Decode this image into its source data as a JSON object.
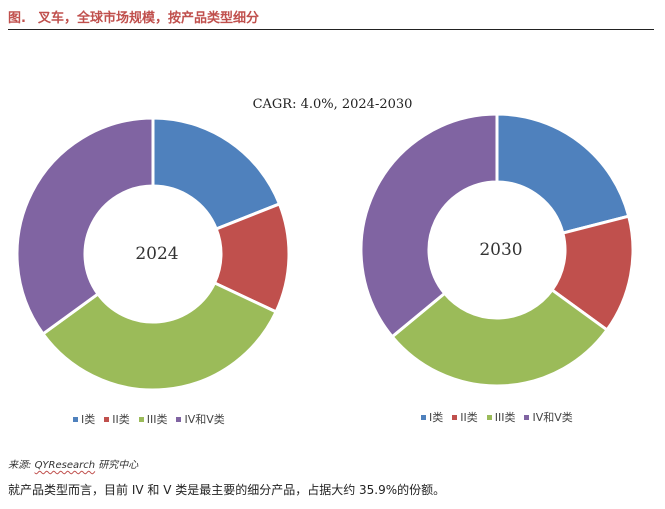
{
  "header": {
    "prefix": "图.",
    "title": "叉车，全球市场规模，按产品类型细分"
  },
  "chart_data": {
    "type": "pie",
    "title": "CAGR:   4.0%, 2024-2030",
    "categories": [
      "I类",
      "II类",
      "III类",
      "IV和V类"
    ],
    "colors": [
      "#4f81bd",
      "#c0504d",
      "#9bbb59",
      "#8064a2"
    ],
    "donuts": [
      {
        "label": "2024",
        "values": [
          19,
          13,
          33,
          35
        ]
      },
      {
        "label": "2030",
        "values": [
          21,
          14,
          29,
          36
        ]
      }
    ]
  },
  "source": {
    "prefix": "来源:",
    "org": "QYResearch",
    "suffix": "研究中心"
  },
  "note": "就产品类型而言，目前 IV 和 V 类是最主要的细分产品，占据大约 35.9%的份额。"
}
